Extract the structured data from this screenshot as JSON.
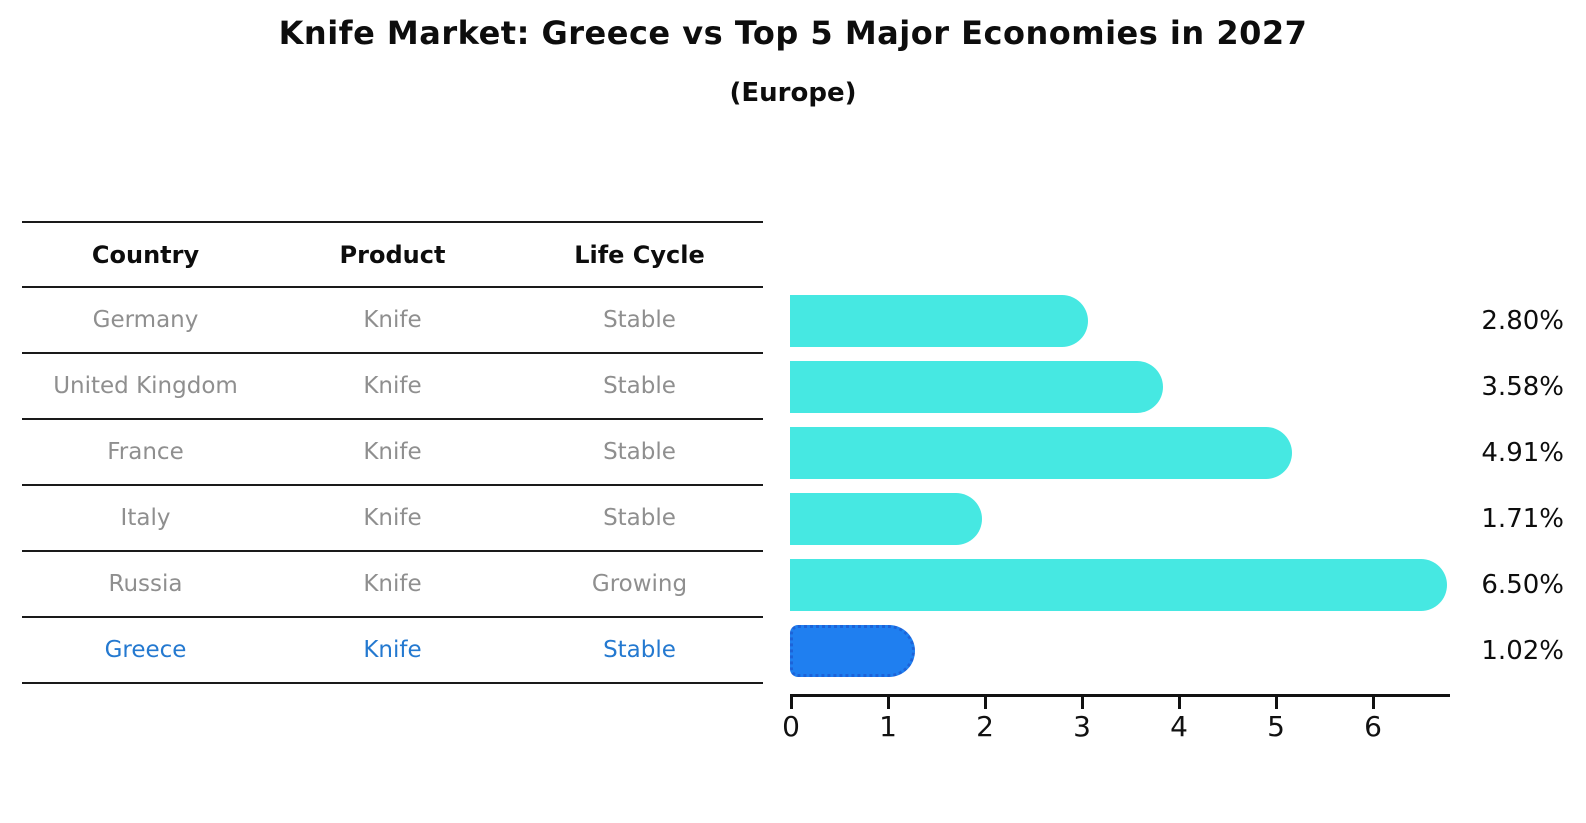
{
  "title": "Knife Market: Greece vs Top 5 Major Economies in 2027",
  "subtitle": "(Europe)",
  "table": {
    "columns": [
      "Country",
      "Product",
      "Life Cycle"
    ],
    "rows": [
      {
        "country": "Germany",
        "product": "Knife",
        "life_cycle": "Stable",
        "highlight": false
      },
      {
        "country": "United Kingdom",
        "product": "Knife",
        "life_cycle": "Stable",
        "highlight": false
      },
      {
        "country": "France",
        "product": "Knife",
        "life_cycle": "Stable",
        "highlight": false
      },
      {
        "country": "Italy",
        "product": "Knife",
        "life_cycle": "Stable",
        "highlight": false
      },
      {
        "country": "Russia",
        "product": "Knife",
        "life_cycle": "Growing",
        "highlight": false
      },
      {
        "country": "Greece",
        "product": "Knife",
        "life_cycle": "Stable",
        "highlight": true
      }
    ]
  },
  "chart_data": {
    "type": "bar",
    "orientation": "horizontal",
    "title": "Knife Market: Greece vs Top 5 Major Economies in 2027",
    "subtitle": "(Europe)",
    "categories": [
      "Germany",
      "United Kingdom",
      "France",
      "Italy",
      "Russia",
      "Greece"
    ],
    "values": [
      2.8,
      3.58,
      4.91,
      1.71,
      6.5,
      1.02
    ],
    "value_labels": [
      "2.80%",
      "3.58%",
      "4.91%",
      "1.71%",
      "6.50%",
      "1.02%"
    ],
    "xlabel": "",
    "ylabel": "",
    "xlim": [
      0,
      6.8
    ],
    "xticks": [
      "0",
      "1",
      "2",
      "3",
      "4",
      "5",
      "6"
    ],
    "grid": false,
    "legend": "none",
    "bar_color": "#46e8e2",
    "highlight_color": "#1f7ff0",
    "highlight_border_color": "#1d63d8",
    "highlight_index": 5,
    "highlight_text_color": "#2479d0",
    "axis_color": "#111111",
    "row_text_color": "#8f8f8f"
  }
}
